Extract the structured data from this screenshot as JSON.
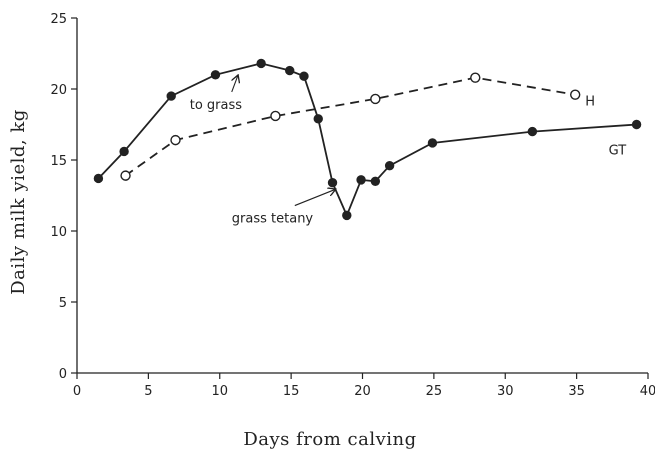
{
  "chart_data": {
    "type": "line",
    "title": "",
    "xlabel": "Days from calving",
    "ylabel": "Daily milk yield, kg",
    "xlim": [
      0,
      40
    ],
    "ylim": [
      0,
      25
    ],
    "xticks": [
      0,
      5,
      10,
      15,
      20,
      25,
      30,
      35,
      40
    ],
    "yticks": [
      0,
      5,
      10,
      15,
      20,
      25
    ],
    "grid": false,
    "series": [
      {
        "name": "GT",
        "style": "solid",
        "marker": "filled-circle",
        "color": "#222222",
        "points": [
          [
            1.5,
            13.7
          ],
          [
            3.3,
            15.6
          ],
          [
            6.6,
            19.5
          ],
          [
            9.7,
            21.0
          ],
          [
            12.9,
            21.8
          ],
          [
            14.9,
            21.3
          ],
          [
            15.9,
            20.9
          ],
          [
            16.9,
            17.9
          ],
          [
            17.9,
            13.4
          ],
          [
            18.9,
            11.1
          ],
          [
            19.9,
            13.6
          ],
          [
            20.9,
            13.5
          ],
          [
            21.9,
            14.6
          ],
          [
            24.9,
            16.2
          ],
          [
            31.9,
            17.0
          ],
          [
            39.2,
            17.5
          ]
        ]
      },
      {
        "name": "H",
        "style": "dashed",
        "marker": "open-circle",
        "color": "#222222",
        "points": [
          [
            3.4,
            13.9
          ],
          [
            6.9,
            16.4
          ],
          [
            13.9,
            18.1
          ],
          [
            20.9,
            19.3
          ],
          [
            27.9,
            20.8
          ],
          [
            34.9,
            19.6
          ]
        ]
      }
    ],
    "annotations": [
      {
        "text": "to grass",
        "target": [
          11.4,
          21.2
        ]
      },
      {
        "text": "grass tetany",
        "target": [
          18.2,
          13.2
        ]
      }
    ]
  }
}
